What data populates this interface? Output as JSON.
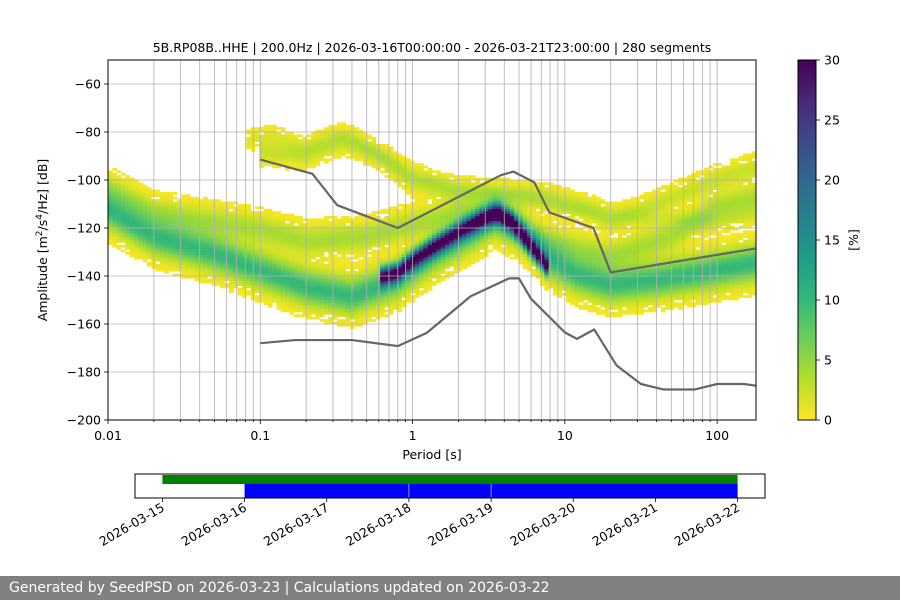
{
  "chart_data": [
    {
      "type": "heatmap",
      "title": "5B.RP08B..HHE | 200.0Hz | 2026-03-16T00:00:00 - 2026-03-21T23:00:00 | 280 segments",
      "xlabel": "Period [s]",
      "ylabel_parts": {
        "pre": "Amplitude [m",
        "sup1": "2",
        "mid": "/s",
        "sup2": "4",
        "post": "/Hz] [dB]"
      },
      "xscale": "log",
      "xlim": [
        0.01,
        180
      ],
      "ylim": [
        -200,
        -50
      ],
      "xticks": [
        {
          "v": 0.01,
          "label": "0.01"
        },
        {
          "v": 0.1,
          "label": "0.1"
        },
        {
          "v": 1,
          "label": "1"
        },
        {
          "v": 10,
          "label": "10"
        },
        {
          "v": 100,
          "label": "100"
        }
      ],
      "yticks": [
        {
          "v": -60,
          "label": "−60"
        },
        {
          "v": -80,
          "label": "−80"
        },
        {
          "v": -100,
          "label": "−100"
        },
        {
          "v": -120,
          "label": "−120"
        },
        {
          "v": -140,
          "label": "−140"
        },
        {
          "v": -160,
          "label": "−160"
        },
        {
          "v": -180,
          "label": "−180"
        },
        {
          "v": -200,
          "label": "−200"
        }
      ],
      "grid": true,
      "colorbar": {
        "label": "[%]",
        "range": [
          0,
          30
        ],
        "ticks": [
          {
            "v": 0,
            "label": "0"
          },
          {
            "v": 5,
            "label": "5"
          },
          {
            "v": 10,
            "label": "10"
          },
          {
            "v": 15,
            "label": "15"
          },
          {
            "v": 20,
            "label": "20"
          },
          {
            "v": 25,
            "label": "25"
          },
          {
            "v": 30,
            "label": "30"
          }
        ],
        "colors": [
          "#fde725",
          "#b5de2b",
          "#6ece58",
          "#35b779",
          "#1f9e89",
          "#26828e",
          "#31688e",
          "#3e4989",
          "#482878",
          "#440154"
        ]
      },
      "reference_curves": [
        {
          "name": "",
          "points": [
            [
              0.1,
              -91.5
            ],
            [
              0.22,
              -97.4
            ],
            [
              0.32,
              -110.5
            ],
            [
              0.8,
              -120
            ],
            [
              3.8,
              -98.0
            ],
            [
              4.6,
              -96.5
            ],
            [
              6.3,
              -101.0
            ],
            [
              7.9,
              -113.5
            ],
            [
              15.4,
              -120
            ],
            [
              20.0,
              -138.5
            ],
            [
              180,
              -128.5
            ]
          ]
        },
        {
          "name": "",
          "points": [
            [
              0.1,
              -168.0
            ],
            [
              0.17,
              -166.7
            ],
            [
              0.4,
              -166.7
            ],
            [
              0.8,
              -169.2
            ],
            [
              1.24,
              -163.7
            ],
            [
              2.4,
              -148.5
            ],
            [
              4.3,
              -141.0
            ],
            [
              5.0,
              -141.0
            ],
            [
              6.0,
              -149.5
            ],
            [
              10.0,
              -163.5
            ],
            [
              12.0,
              -166.2
            ],
            [
              15.6,
              -162.3
            ],
            [
              21.9,
              -177.3
            ],
            [
              31.6,
              -185.0
            ],
            [
              44.7,
              -187.3
            ],
            [
              70.8,
              -187.3
            ],
            [
              100,
              -185.0
            ],
            [
              150,
              -185.0
            ],
            [
              180,
              -185.7
            ]
          ]
        }
      ],
      "modes": [
        {
          "points": [
            [
              0.01,
              -113
            ],
            [
              0.02,
              -124
            ],
            [
              0.05,
              -131
            ],
            [
              0.1,
              -138
            ],
            [
              0.2,
              -145
            ],
            [
              0.4,
              -149
            ],
            [
              0.8,
              -142
            ],
            [
              1.4,
              -131
            ],
            [
              2.5,
              -122
            ],
            [
              3.5,
              -116
            ],
            [
              5,
              -121
            ],
            [
              8,
              -134
            ],
            [
              12,
              -140
            ],
            [
              20,
              -144
            ],
            [
              40,
              -142
            ],
            [
              80,
              -139
            ],
            [
              180,
              -135
            ]
          ],
          "spread": 5,
          "peak": 10
        },
        {
          "points": [
            [
              0.01,
              -104
            ],
            [
              0.02,
              -114
            ],
            [
              0.05,
              -118
            ],
            [
              0.1,
              -121
            ],
            [
              0.2,
              -126
            ],
            [
              0.5,
              -124
            ],
            [
              1,
              -119
            ],
            [
              2,
              -114
            ],
            [
              4,
              -116
            ],
            [
              6,
              -124
            ],
            [
              10,
              -128
            ],
            [
              20,
              -132
            ],
            [
              50,
              -124
            ],
            [
              100,
              -112
            ],
            [
              180,
              -108
            ]
          ],
          "spread": 4,
          "peak": 4
        },
        {
          "points": [
            [
              0.1,
              -89
            ],
            [
              0.2,
              -90
            ],
            [
              0.35,
              -84
            ],
            [
              0.6,
              -90
            ],
            [
              1,
              -101
            ],
            [
              2,
              -106
            ],
            [
              4,
              -107
            ],
            [
              8,
              -108
            ],
            [
              15,
              -113
            ],
            [
              20,
              -118
            ],
            [
              50,
              -108
            ],
            [
              100,
              -100
            ],
            [
              180,
              -95
            ]
          ],
          "spread": 3,
          "peak": 2.5
        },
        {
          "points": [
            [
              0.08,
              -84
            ],
            [
              0.12,
              -82
            ],
            [
              0.2,
              -87
            ],
            [
              0.3,
              -82
            ],
            [
              0.4,
              -83
            ],
            [
              0.6,
              -90
            ],
            [
              1,
              -98
            ],
            [
              2,
              -104
            ],
            [
              5,
              -106
            ],
            [
              10,
              -112
            ],
            [
              30,
              -116
            ],
            [
              100,
              -118
            ],
            [
              180,
              -115
            ]
          ],
          "spread": 2.5,
          "peak": 1.5
        },
        {
          "points": [
            [
              0.6,
              -141
            ],
            [
              0.8,
              -139
            ],
            [
              1,
              -134
            ],
            [
              1.4,
              -128
            ],
            [
              2,
              -122
            ],
            [
              3,
              -116
            ],
            [
              3.6,
              -114
            ],
            [
              4.5,
              -118
            ],
            [
              6,
              -128
            ],
            [
              8,
              -138
            ]
          ],
          "spread": 2.5,
          "peak": 26
        }
      ]
    },
    {
      "type": "timeline",
      "xlim": [
        "2026-03-14T16:00:00",
        "2026-03-22T08:00:00"
      ],
      "xticks": [
        "2026-03-15",
        "2026-03-16",
        "2026-03-17",
        "2026-03-18",
        "2026-03-19",
        "2026-03-20",
        "2026-03-21",
        "2026-03-22"
      ],
      "requested": {
        "start": "2026-03-15T00:00:00",
        "end": "2026-03-22T00:00:00",
        "color": "#008000"
      },
      "available": [
        {
          "start": "2026-03-16T00:00:00",
          "end": "2026-03-17T23:55:00"
        },
        {
          "start": "2026-03-18T00:05:00",
          "end": "2026-03-18T23:55:00"
        },
        {
          "start": "2026-03-19T00:05:00",
          "end": "2026-03-22T00:00:00"
        }
      ],
      "available_color": "#0000ff"
    }
  ],
  "footer": {
    "text": "Generated by SeedPSD on 2026-03-23 | Calculations updated on 2026-03-22"
  }
}
